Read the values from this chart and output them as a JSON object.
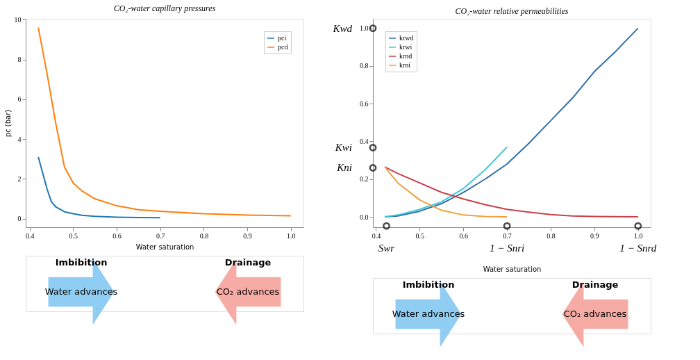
{
  "chart_data": [
    {
      "type": "line",
      "title": "CO₂-water capillary pressures",
      "xlabel": "Water saturation",
      "ylabel": "pc (bar)",
      "xlim": [
        0.391,
        1.029
      ],
      "xticks": [
        0.4,
        0.5,
        0.6,
        0.7,
        0.8,
        0.9,
        {
          "value": 1.0,
          "label": "1.0"
        }
      ],
      "ylim": [
        -0.43,
        10.05
      ],
      "yticks": [
        0,
        2,
        4,
        6,
        8,
        10
      ],
      "grid": false,
      "legend": "top right",
      "series": [
        {
          "name": "pci",
          "color": "#1f77b4",
          "x": [
            0.42,
            0.43,
            0.44,
            0.45,
            0.46,
            0.48,
            0.5,
            0.52,
            0.55,
            0.6,
            0.65,
            0.7
          ],
          "values": [
            3.1,
            2.3,
            1.5,
            0.85,
            0.6,
            0.35,
            0.25,
            0.17,
            0.12,
            0.08,
            0.06,
            0.05
          ]
        },
        {
          "name": "pcd",
          "color": "#ff7f0e",
          "x": [
            0.42,
            0.44,
            0.46,
            0.48,
            0.5,
            0.52,
            0.55,
            0.6,
            0.65,
            0.7,
            0.8,
            0.9,
            1.0
          ],
          "values": [
            9.6,
            7.3,
            4.8,
            2.6,
            1.8,
            1.4,
            1.0,
            0.65,
            0.45,
            0.37,
            0.25,
            0.18,
            0.15
          ]
        }
      ],
      "annotations": [
        "Imbibition",
        "Water advances",
        "Drainage",
        "CO₂ advances"
      ]
    },
    {
      "type": "line",
      "title": "CO₂-water relative permeabilities",
      "xlabel": "Water saturation",
      "xlim": [
        0.393,
        1.029
      ],
      "xticks": [
        0.4,
        0.5,
        0.6,
        0.7,
        0.8,
        0.9,
        {
          "value": 1.0,
          "label": "1.0"
        }
      ],
      "ylim": [
        -0.055,
        1.05
      ],
      "yticks": [
        {
          "value": 0.0,
          "label": "0.0"
        },
        0.2,
        0.4,
        0.6,
        0.8,
        {
          "value": 1.0,
          "label": "1.0"
        }
      ],
      "grid": false,
      "legend": "top left",
      "series": [
        {
          "name": "krwd",
          "color": "#2f6fa8",
          "x": [
            0.42,
            0.45,
            0.5,
            0.55,
            0.6,
            0.65,
            0.7,
            0.75,
            0.8,
            0.85,
            0.9,
            0.95,
            1.0
          ],
          "values": [
            0.0,
            0.005,
            0.03,
            0.07,
            0.13,
            0.2,
            0.28,
            0.39,
            0.51,
            0.63,
            0.77,
            0.88,
            1.0
          ]
        },
        {
          "name": "krwi",
          "color": "#3ec8d8",
          "x": [
            0.42,
            0.45,
            0.5,
            0.55,
            0.6,
            0.65,
            0.7
          ],
          "values": [
            0.0,
            0.01,
            0.04,
            0.08,
            0.15,
            0.25,
            0.37
          ]
        },
        {
          "name": "krnd",
          "color": "#c8404a",
          "x": [
            0.42,
            0.45,
            0.5,
            0.55,
            0.6,
            0.65,
            0.7,
            0.75,
            0.8,
            0.85,
            0.9,
            1.0
          ],
          "values": [
            0.265,
            0.23,
            0.18,
            0.13,
            0.095,
            0.065,
            0.04,
            0.025,
            0.012,
            0.005,
            0.002,
            0.0
          ]
        },
        {
          "name": "krni",
          "color": "#f0a040",
          "x": [
            0.42,
            0.45,
            0.5,
            0.55,
            0.6,
            0.65,
            0.7
          ],
          "values": [
            0.265,
            0.18,
            0.09,
            0.035,
            0.01,
            0.002,
            0.0
          ]
        }
      ],
      "annotations": [
        {
          "text": "Kwd",
          "x": 0.393,
          "y": 1.0
        },
        {
          "text": "Kwi",
          "x": 0.393,
          "y": 0.367
        },
        {
          "text": "Kni",
          "x": 0.393,
          "y": 0.26
        },
        {
          "text": "Swr",
          "x": 0.424,
          "y": -0.048
        },
        {
          "text": "1 − Snri",
          "x": 0.7,
          "y": -0.048
        },
        {
          "text": "1 − Snrd",
          "x": 1.0,
          "y": -0.048
        },
        "Imbibition",
        "Water advances",
        "Drainage",
        "CO₂ advances"
      ]
    }
  ]
}
